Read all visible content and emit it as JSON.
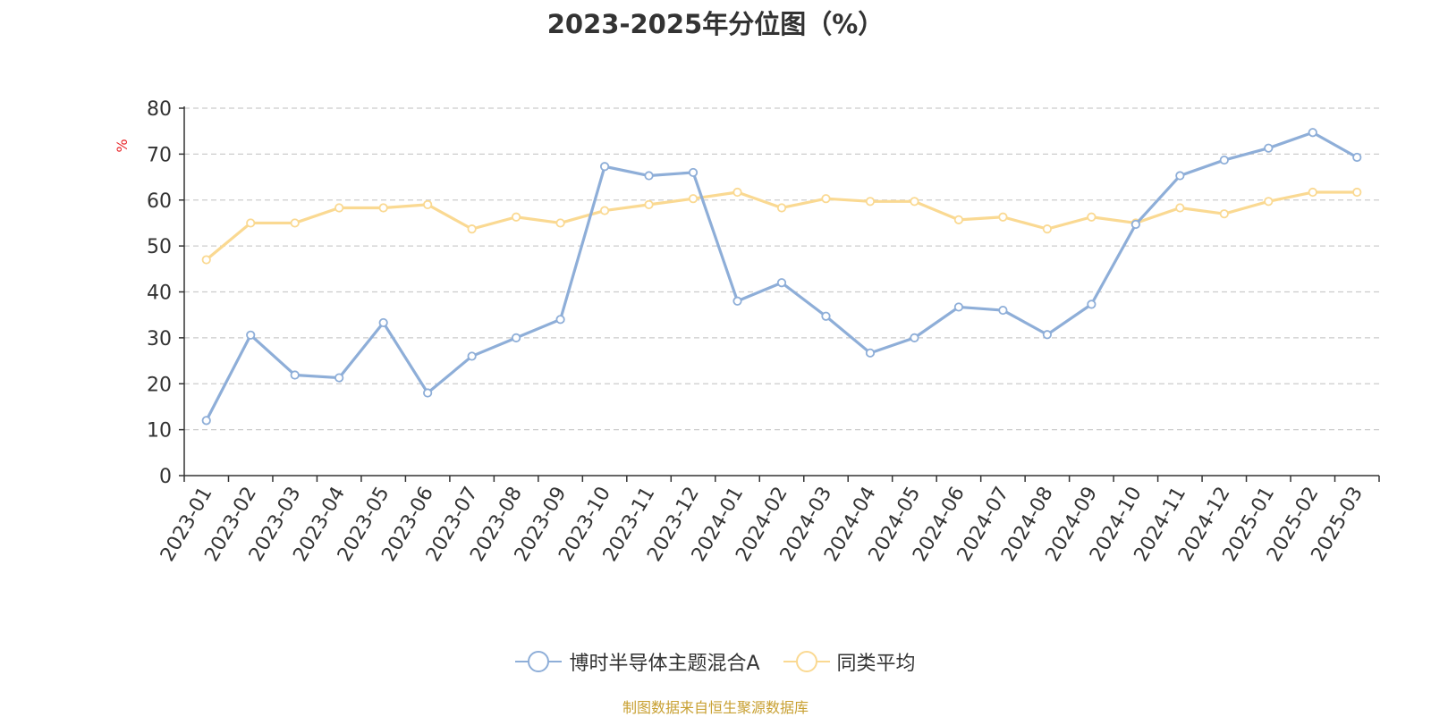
{
  "chart_data": {
    "type": "line",
    "title": "2023-2025年分位图（%）",
    "ylabel": "%",
    "xlabel": "",
    "ylim": [
      0,
      80
    ],
    "yticks": [
      0,
      10,
      20,
      30,
      40,
      50,
      60,
      70,
      80
    ],
    "grid": true,
    "legend_position": "bottom-center",
    "categories": [
      "2023-01",
      "2023-02",
      "2023-03",
      "2023-04",
      "2023-05",
      "2023-06",
      "2023-07",
      "2023-08",
      "2023-09",
      "2023-10",
      "2023-11",
      "2023-12",
      "2024-01",
      "2024-02",
      "2024-03",
      "2024-04",
      "2024-05",
      "2024-06",
      "2024-07",
      "2024-08",
      "2024-09",
      "2024-10",
      "2024-11",
      "2024-12",
      "2025-01",
      "2025-02",
      "2025-03"
    ],
    "series": [
      {
        "name": "博时半导体主题混合A",
        "color": "#8eaed8",
        "values": [
          12.0,
          30.6,
          21.9,
          21.3,
          33.3,
          18.0,
          26.0,
          30.0,
          34.0,
          67.3,
          65.3,
          66.0,
          38.0,
          42.0,
          34.7,
          26.7,
          30.0,
          36.7,
          36.0,
          30.7,
          37.3,
          54.7,
          65.3,
          68.7,
          71.3,
          74.7,
          69.3
        ]
      },
      {
        "name": "同类平均",
        "color": "#fad992",
        "values": [
          47.0,
          55.0,
          55.0,
          58.3,
          58.3,
          59.0,
          53.7,
          56.3,
          55.0,
          57.7,
          59.0,
          60.3,
          61.7,
          58.3,
          60.3,
          59.7,
          59.7,
          55.7,
          56.3,
          53.7,
          56.3,
          55.0,
          58.3,
          57.0,
          59.7,
          61.7,
          61.7
        ]
      }
    ]
  },
  "footer": {
    "source": "制图数据来自恒生聚源数据库",
    "source_color": "#c8a032"
  },
  "colors": {
    "ylabel": "#e8262a",
    "axis": "#333333",
    "grid": "#cccccc"
  }
}
